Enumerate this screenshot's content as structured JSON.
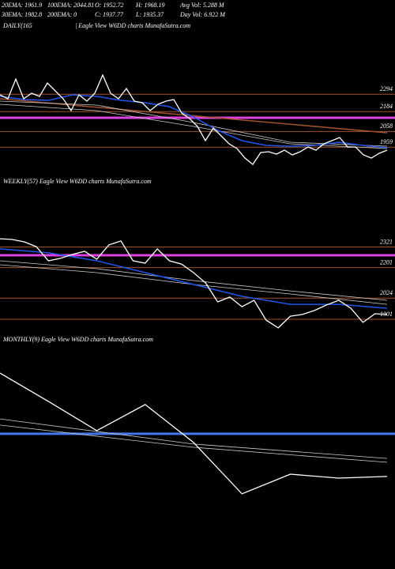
{
  "header": {
    "rows": [
      [
        "20EMA: 1961.9",
        "100EMA: 2044.81",
        "O: 1952.72",
        "H: 1968.19",
        "Avg Vol: 5.288  M"
      ],
      [
        "30EMA: 1982.8",
        "200EMA: 0",
        "C: 1937.77",
        "L: 1935.37",
        "Day Vol: 6.922  M"
      ]
    ]
  },
  "chart_data": [
    {
      "type": "line",
      "title": "DAILY(165",
      "subtitle": "| Eagle  View  W6DD charts MunafaSutra.com",
      "ylim": [
        1800,
        2700
      ],
      "yticks": [
        2294,
        2184,
        2058,
        1959
      ],
      "grid": true,
      "grid_color": "#a0522d",
      "levels": [
        {
          "value": 2145,
          "color": "#e040e0"
        }
      ],
      "series": [
        {
          "color": "#a0522d",
          "values": [
            2265,
            2050
          ]
        },
        {
          "color": "#cccccc",
          "values": [
            2250,
            2225,
            2115,
            1990,
            1965
          ]
        },
        {
          "color": "#cccccc",
          "values": [
            2230,
            2190,
            2090,
            1980,
            1950
          ]
        },
        {
          "color": "#2255ee",
          "values": [
            2280,
            2260,
            2255,
            2290,
            2280,
            2255,
            2240,
            2215,
            2150,
            2065,
            2000,
            1970,
            1965,
            1970,
            1990,
            1970,
            1955
          ]
        },
        {
          "color": "#ffffff",
          "values": [
            2290,
            2265,
            2390,
            2265,
            2300,
            2280,
            2365,
            2315,
            2265,
            2190,
            2290,
            2250,
            2300,
            2415,
            2300,
            2265,
            2330,
            2250,
            2240,
            2190,
            2230,
            2250,
            2260,
            2175,
            2140,
            2090,
            2000,
            2080,
            2030,
            1980,
            1950,
            1890,
            1850,
            1925,
            1930,
            1915,
            1940,
            1910,
            1930,
            1960,
            1940,
            1980,
            2000,
            2020,
            1960,
            1960,
            1910,
            1890,
            1920,
            1940
          ]
        }
      ]
    },
    {
      "type": "line",
      "title": "WEEKLY(57) Eagle  View  W6DD charts MunafaSutra.com",
      "ylim": [
        1800,
        2700
      ],
      "yticks": [
        2321,
        2201,
        2024,
        1901
      ],
      "grid": true,
      "grid_color": "#a0522d",
      "levels": [
        {
          "value": 2273,
          "color": "#e040e0"
        }
      ],
      "series": [
        {
          "color": "#cccccc",
          "values": [
            2241,
            2195,
            2126,
            2066,
            2011
          ]
        },
        {
          "color": "#cccccc",
          "values": [
            2218,
            2172,
            2103,
            2048,
            1988
          ]
        },
        {
          "color": "#2255ee",
          "values": [
            2310,
            2287,
            2241,
            2172,
            2103,
            2034,
            1988,
            1988,
            1965
          ]
        },
        {
          "color": "#ffffff",
          "values": [
            2369,
            2365,
            2351,
            2323,
            2241,
            2255,
            2278,
            2296,
            2250,
            2333,
            2356,
            2241,
            2227,
            2310,
            2241,
            2222,
            2172,
            2112,
            2002,
            2030,
            1974,
            2011,
            1896,
            1851,
            1919,
            1929,
            1952,
            1984,
            2011,
            1965,
            1883,
            1933,
            1929
          ]
        }
      ]
    },
    {
      "type": "line",
      "title": "MONTHLY(9) Eagle  View  W6DD charts MunafaSutra.com",
      "ylim": [
        1800,
        2700
      ],
      "grid": false,
      "levels": [
        {
          "value": 2323,
          "color": "#4477ee"
        }
      ],
      "series": [
        {
          "color": "#cccccc",
          "values": [
            2388,
            2278,
            2215
          ]
        },
        {
          "color": "#cccccc",
          "values": [
            2361,
            2264,
            2198
          ]
        },
        {
          "color": "#ffffff",
          "values": [
            2589,
            2465,
            2337,
            2451,
            2285,
            2060,
            2146,
            2129,
            2136
          ]
        }
      ]
    }
  ]
}
